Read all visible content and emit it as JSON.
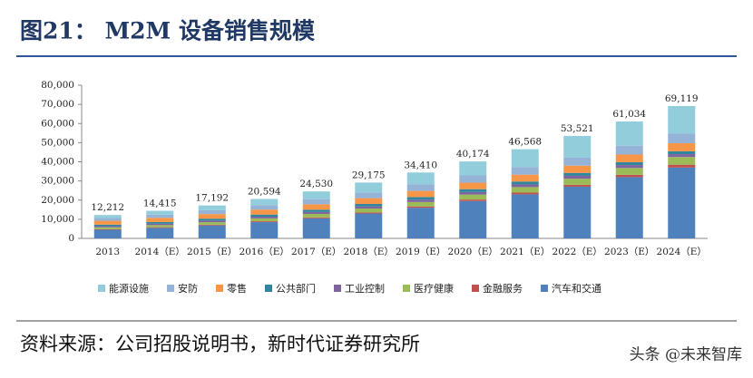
{
  "header": {
    "title": "图21：  M2M 设备销售规模"
  },
  "chart_data": {
    "type": "stacked_bar",
    "categories": [
      "2013",
      "2014（E）",
      "2015（E）",
      "2016（E）",
      "2017（E）",
      "2018（E）",
      "2019（E）",
      "2020（E）",
      "2021（E）",
      "2022（E）",
      "2023（E）",
      "2024（E）"
    ],
    "series": [
      {
        "name": "能源设施",
        "color": "#92cddc",
        "values": [
          1512,
          1965,
          2492,
          3244,
          4030,
          5175,
          6210,
          7274,
          9268,
          11221,
          12634,
          14419
        ]
      },
      {
        "name": "安防",
        "color": "#95b3d7",
        "values": [
          1500,
          1700,
          2000,
          2300,
          2700,
          3000,
          3400,
          3800,
          4000,
          4300,
          4600,
          5000
        ]
      },
      {
        "name": "零售",
        "color": "#f79646",
        "values": [
          2000,
          2200,
          2400,
          2600,
          2800,
          3000,
          3200,
          3400,
          3600,
          3800,
          4000,
          4200
        ]
      },
      {
        "name": "公共部门",
        "color": "#31859c",
        "values": [
          800,
          900,
          1000,
          1100,
          1200,
          1300,
          1400,
          1500,
          1500,
          1500,
          1500,
          1500
        ]
      },
      {
        "name": "工业控制",
        "color": "#7f63a1",
        "values": [
          600,
          700,
          800,
          900,
          1000,
          1100,
          1200,
          1300,
          1400,
          1500,
          1500,
          1500
        ]
      },
      {
        "name": "医疗健康",
        "color": "#9bbb59",
        "values": [
          1000,
          1100,
          1300,
          1500,
          1800,
          2000,
          2300,
          2600,
          2900,
          3200,
          3600,
          4000
        ]
      },
      {
        "name": "金融服务",
        "color": "#c0504d",
        "values": [
          300,
          350,
          400,
          450,
          500,
          600,
          700,
          800,
          900,
          1000,
          1200,
          1500
        ]
      },
      {
        "name": "汽车和交通",
        "color": "#4f81bd",
        "values": [
          4500,
          5500,
          6800,
          8500,
          10500,
          13000,
          16000,
          19500,
          23000,
          27000,
          32000,
          37000
        ]
      }
    ],
    "totals": {
      "values": [
        12212,
        14415,
        17192,
        20594,
        24530,
        29175,
        34410,
        40174,
        46568,
        53521,
        61034,
        69119
      ],
      "value_labels": [
        "12,212",
        "14,415",
        "17,192",
        "20,594",
        "24,530",
        "29,175",
        "34,410",
        "40,174",
        "46,568",
        "53,521",
        "61,034",
        "69,119"
      ]
    },
    "ylim": [
      0,
      80000
    ],
    "yticks": [
      0,
      {
        "value": 10000,
        "label": "10,000"
      },
      {
        "value": 20000,
        "label": "20,000"
      },
      {
        "value": 30000,
        "label": "30,000"
      },
      {
        "value": 40000,
        "label": "40,000"
      },
      {
        "value": 50000,
        "label": "50,000"
      },
      {
        "value": 60000,
        "label": "60,000"
      },
      {
        "value": 70000,
        "label": "70,000"
      },
      {
        "value": 80000,
        "label": "80,000"
      }
    ],
    "grid": false,
    "legend": "bottom"
  },
  "source": "资料来源：公司招股说明书，新时代证券研究所",
  "watermark": "头条 @未来智库"
}
